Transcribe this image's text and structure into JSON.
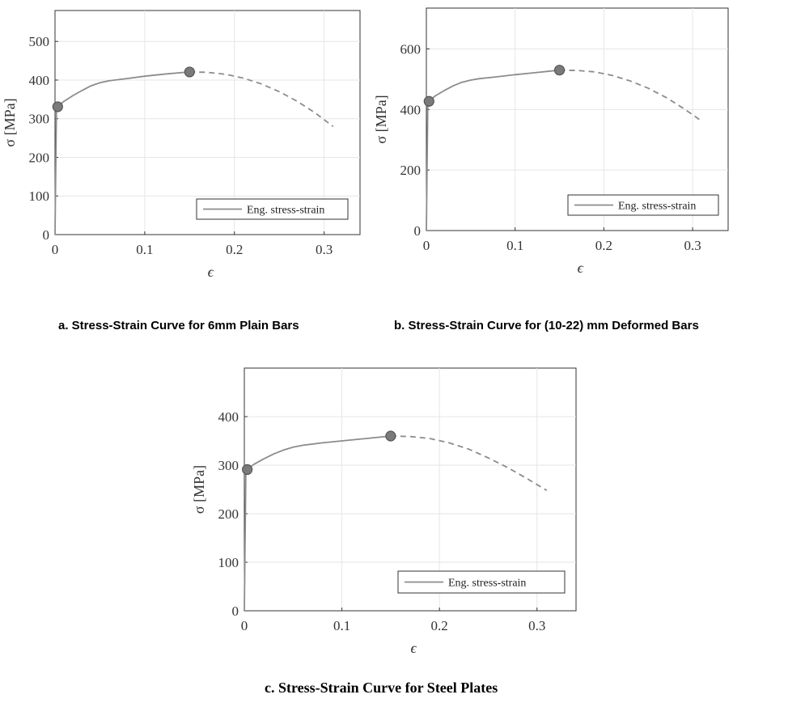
{
  "chart_data": [
    {
      "type": "line",
      "caption": "a. Stress-Strain  Curve  for  6mm Plain Bars",
      "xlabel": "ϵ",
      "ylabel": "σ [MPa]",
      "xlim": [
        0,
        0.34
      ],
      "ylim": [
        0,
        580
      ],
      "xticks": [
        0,
        0.1,
        0.2,
        0.3
      ],
      "xtick_labels": [
        "0",
        "0.1",
        "0.2",
        "0.3"
      ],
      "yticks": [
        0,
        100,
        200,
        300,
        400,
        500
      ],
      "ytick_labels": [
        "0",
        "100",
        "200",
        "300",
        "400",
        "500"
      ],
      "grid": true,
      "legend": "bottom-right",
      "series": [
        {
          "name": "Eng. stress-strain",
          "style": "solid",
          "x": [
            0,
            0.0016,
            0.003,
            0.01,
            0.02,
            0.03,
            0.04,
            0.05,
            0.06,
            0.08,
            0.1,
            0.12,
            0.15
          ],
          "y": [
            0,
            330,
            332,
            345,
            360,
            373,
            385,
            393,
            398,
            404,
            410,
            415,
            421
          ]
        },
        {
          "style": "dashed",
          "x": [
            0.15,
            0.17,
            0.19,
            0.21,
            0.23,
            0.25,
            0.27,
            0.29,
            0.31
          ],
          "y": [
            421,
            420,
            415,
            405,
            390,
            370,
            345,
            315,
            280
          ]
        }
      ],
      "markers": [
        {
          "x": 0.003,
          "y": 331
        },
        {
          "x": 0.15,
          "y": 421
        }
      ]
    },
    {
      "type": "line",
      "caption": "b. Stress-Strain  Curve  for  (10-22)  mm Deformed Bars",
      "xlabel": "ϵ",
      "ylabel": "σ [MPa]",
      "xlim": [
        0,
        0.34
      ],
      "ylim": [
        0,
        735
      ],
      "xticks": [
        0,
        0.1,
        0.2,
        0.3
      ],
      "xtick_labels": [
        "0",
        "0.1",
        "0.2",
        "0.3"
      ],
      "yticks": [
        0,
        200,
        400,
        600
      ],
      "ytick_labels": [
        "0",
        "200",
        "400",
        "600"
      ],
      "grid": true,
      "legend": "bottom-right",
      "series": [
        {
          "name": "Eng. stress-strain",
          "style": "solid",
          "x": [
            0,
            0.0016,
            0.003,
            0.01,
            0.02,
            0.03,
            0.04,
            0.05,
            0.06,
            0.08,
            0.1,
            0.12,
            0.15
          ],
          "y": [
            0,
            425,
            428,
            445,
            462,
            478,
            490,
            497,
            502,
            508,
            515,
            521,
            530
          ]
        },
        {
          "style": "dashed",
          "x": [
            0.15,
            0.17,
            0.19,
            0.21,
            0.23,
            0.25,
            0.27,
            0.29,
            0.31
          ],
          "y": [
            530,
            529,
            524,
            512,
            494,
            470,
            440,
            403,
            362
          ]
        }
      ],
      "markers": [
        {
          "x": 0.003,
          "y": 427
        },
        {
          "x": 0.15,
          "y": 530
        }
      ]
    },
    {
      "type": "line",
      "caption": "c. Stress-Strain  Curve  for  Steel Plates",
      "xlabel": "ϵ",
      "ylabel": "σ [MPa]",
      "xlim": [
        0,
        0.34
      ],
      "ylim": [
        0,
        500
      ],
      "xticks": [
        0,
        0.1,
        0.2,
        0.3
      ],
      "xtick_labels": [
        "0",
        "0.1",
        "0.2",
        "0.3"
      ],
      "yticks": [
        0,
        100,
        200,
        300,
        400
      ],
      "ytick_labels": [
        "0",
        "100",
        "200",
        "300",
        "400"
      ],
      "grid": true,
      "legend": "bottom-right",
      "series": [
        {
          "name": "Eng. stress-strain",
          "style": "solid",
          "x": [
            0,
            0.0016,
            0.003,
            0.01,
            0.02,
            0.03,
            0.04,
            0.05,
            0.06,
            0.08,
            0.1,
            0.12,
            0.15
          ],
          "y": [
            0,
            290,
            292,
            302,
            313,
            323,
            331,
            337,
            341,
            346,
            350,
            354,
            360
          ]
        },
        {
          "style": "dashed",
          "x": [
            0.15,
            0.17,
            0.19,
            0.21,
            0.23,
            0.25,
            0.27,
            0.29,
            0.31
          ],
          "y": [
            360,
            359,
            355,
            346,
            333,
            315,
            295,
            272,
            248
          ]
        }
      ],
      "markers": [
        {
          "x": 0.003,
          "y": 291
        },
        {
          "x": 0.15,
          "y": 360
        }
      ]
    }
  ],
  "colors": {
    "curve": "#8c8c8c",
    "marker_fill": "#7a7a7a",
    "marker_stroke": "#555555",
    "grid": "#e6e6e6",
    "axis": "#333333"
  }
}
